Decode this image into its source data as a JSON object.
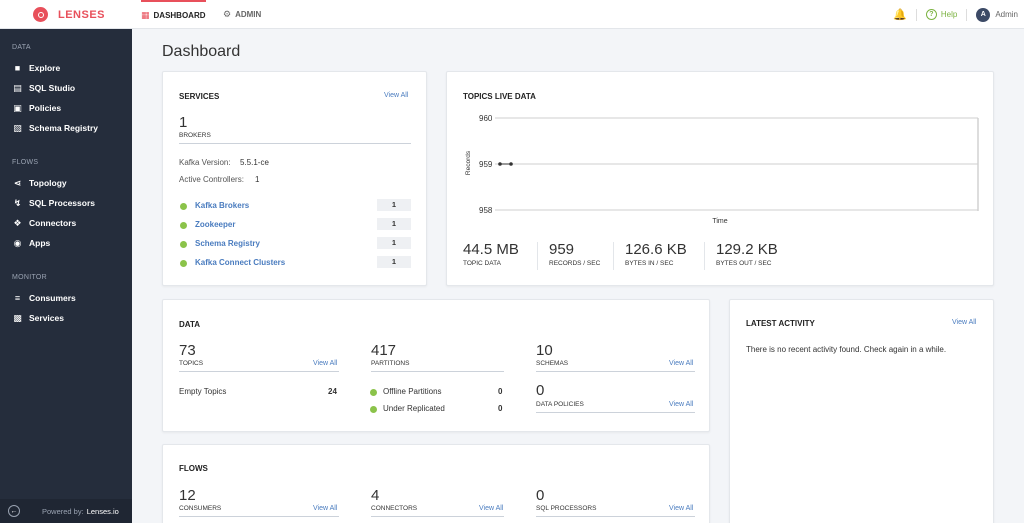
{
  "brand": {
    "name": "LENSES"
  },
  "nav": {
    "dashboard": "DASHBOARD",
    "admin": "ADMIN"
  },
  "top_right": {
    "help": "Help",
    "user_initial": "A",
    "user": "Admin"
  },
  "sidebar": {
    "data_title": "DATA",
    "data_items": [
      "Explore",
      "SQL Studio",
      "Policies",
      "Schema Registry"
    ],
    "flows_title": "FLOWS",
    "flows_items": [
      "Topology",
      "SQL Processors",
      "Connectors",
      "Apps"
    ],
    "monitor_title": "MONITOR",
    "monitor_items": [
      "Consumers",
      "Services"
    ],
    "footer_prefix": "Powered by:",
    "footer_brand": "Lenses.io"
  },
  "page": {
    "title": "Dashboard"
  },
  "services": {
    "title": "SERVICES",
    "view_all": "View All",
    "brokers_value": "1",
    "brokers_label": "BROKERS",
    "kafka_version_label": "Kafka Version:",
    "kafka_version": "5.5.1-ce",
    "active_controllers_label": "Active Controllers:",
    "active_controllers": "1",
    "items": [
      {
        "name": "Kafka Brokers",
        "count": "1"
      },
      {
        "name": "Zookeeper",
        "count": "1"
      },
      {
        "name": "Schema Registry",
        "count": "1"
      },
      {
        "name": "Kafka Connect Clusters",
        "count": "1"
      }
    ]
  },
  "live": {
    "title": "TOPICS LIVE DATA",
    "y_label": "Records",
    "x_label": "Time",
    "ticks": [
      "960",
      "959",
      "958"
    ],
    "stats": [
      {
        "value": "44.5 MB",
        "label": "TOPIC DATA"
      },
      {
        "value": "959",
        "label": "RECORDS / SEC"
      },
      {
        "value": "126.6 KB",
        "label": "BYTES IN / SEC"
      },
      {
        "value": "129.2 KB",
        "label": "BYTES OUT / SEC"
      }
    ]
  },
  "chart_data": {
    "type": "line",
    "xlabel": "Time",
    "ylabel": "Records",
    "ylim": [
      958,
      960
    ],
    "yticks": [
      960,
      959,
      958
    ],
    "series": [
      {
        "values": [
          959,
          959
        ]
      }
    ]
  },
  "data": {
    "title": "DATA",
    "topics_value": "73",
    "topics_label": "TOPICS",
    "partitions_value": "417",
    "partitions_label": "PARTITIONS",
    "schemas_value": "10",
    "schemas_label": "SCHEMAS",
    "policies_value": "0",
    "policies_label": "DATA POLICIES",
    "view_all": "View All",
    "empty_topics_label": "Empty Topics",
    "empty_topics": "24",
    "offline_label": "Offline Partitions",
    "offline": "0",
    "under_label": "Under Replicated",
    "under": "0"
  },
  "activity": {
    "title": "LATEST ACTIVITY",
    "view_all": "View All",
    "message": "There is no recent activity found. Check again in a while."
  },
  "flows": {
    "title": "FLOWS",
    "view_all": "View All",
    "consumers_value": "12",
    "consumers_label": "CONSUMERS",
    "connectors_value": "4",
    "connectors_label": "CONNECTORS",
    "processors_value": "0",
    "processors_label": "SQL PROCESSORS"
  }
}
